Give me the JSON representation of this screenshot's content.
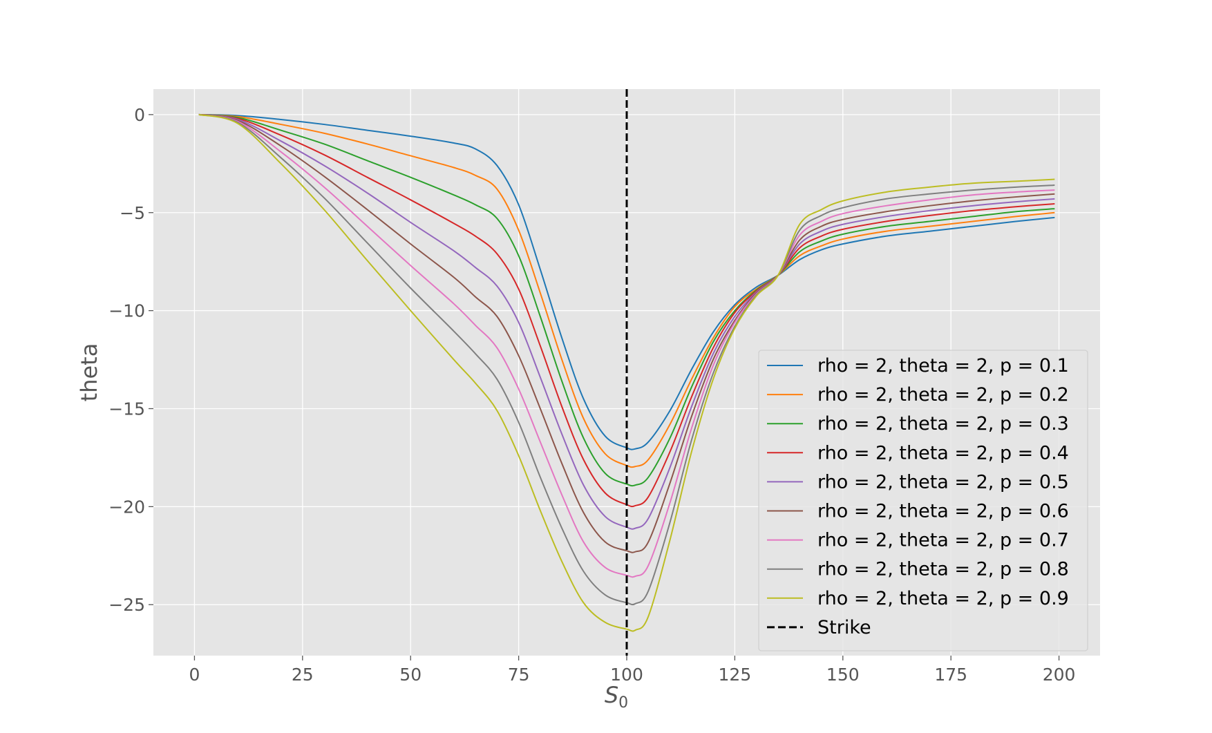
{
  "chart_data": {
    "type": "line",
    "title": "",
    "xlabel": "S",
    "xlabel_sub": "0",
    "ylabel": "theta",
    "xlim": [
      -9.5,
      209.5
    ],
    "ylim": [
      -27.6,
      1.3
    ],
    "xticks": [
      0,
      25,
      50,
      75,
      100,
      125,
      150,
      175,
      200
    ],
    "yticks": [
      0,
      -5,
      -10,
      -15,
      -20,
      -25
    ],
    "xtick_labels": [
      "0",
      "25",
      "50",
      "75",
      "100",
      "125",
      "150",
      "175",
      "200"
    ],
    "ytick_labels": [
      "0",
      "−5",
      "−10",
      "−15",
      "−20",
      "−25"
    ],
    "grid": true,
    "legend_position": "lower-right",
    "colors": {
      "background": "#e5e5e5",
      "grid": "#ffffff",
      "tick_text": "#555555"
    },
    "x": [
      1,
      10,
      20,
      30,
      40,
      50,
      60,
      65,
      70,
      75,
      80,
      85,
      90,
      95,
      100,
      102,
      105,
      110,
      115,
      120,
      125,
      130,
      135,
      140,
      145,
      150,
      160,
      170,
      180,
      190,
      199
    ],
    "series": [
      {
        "name": "rho = 2, theta = 2, p = 0.1",
        "color": "#1f77b4",
        "values": [
          0,
          -0.05,
          -0.25,
          -0.5,
          -0.8,
          -1.1,
          -1.45,
          -1.75,
          -2.6,
          -4.6,
          -7.9,
          -11.4,
          -14.5,
          -16.4,
          -17.0,
          -17.05,
          -16.7,
          -15.1,
          -13.0,
          -11.1,
          -9.7,
          -8.8,
          -8.2,
          -7.4,
          -6.9,
          -6.6,
          -6.2,
          -5.95,
          -5.7,
          -5.45,
          -5.25
        ]
      },
      {
        "name": "rho = 2, theta = 2, p = 0.2",
        "color": "#ff7f0e",
        "values": [
          0,
          -0.1,
          -0.5,
          -0.95,
          -1.5,
          -2.1,
          -2.7,
          -3.1,
          -3.8,
          -5.9,
          -9.1,
          -12.5,
          -15.5,
          -17.3,
          -17.9,
          -17.95,
          -17.6,
          -15.8,
          -13.5,
          -11.4,
          -9.8,
          -8.9,
          -8.2,
          -7.2,
          -6.7,
          -6.35,
          -5.95,
          -5.7,
          -5.45,
          -5.2,
          -5.0
        ]
      },
      {
        "name": "rho = 2, theta = 2, p = 0.3",
        "color": "#2ca02c",
        "values": [
          0,
          -0.15,
          -0.8,
          -1.5,
          -2.35,
          -3.2,
          -4.1,
          -4.6,
          -5.3,
          -7.2,
          -10.3,
          -13.6,
          -16.5,
          -18.3,
          -18.85,
          -18.9,
          -18.5,
          -16.5,
          -13.9,
          -11.6,
          -10.0,
          -8.95,
          -8.2,
          -7.0,
          -6.45,
          -6.1,
          -5.7,
          -5.45,
          -5.2,
          -4.95,
          -4.8
        ]
      },
      {
        "name": "rho = 2, theta = 2, p = 0.4",
        "color": "#d62728",
        "values": [
          0,
          -0.2,
          -1.05,
          -2.05,
          -3.2,
          -4.35,
          -5.55,
          -6.2,
          -7.1,
          -8.9,
          -11.8,
          -14.9,
          -17.6,
          -19.3,
          -19.9,
          -19.95,
          -19.5,
          -17.2,
          -14.4,
          -11.9,
          -10.1,
          -9.0,
          -8.2,
          -6.8,
          -6.2,
          -5.85,
          -5.45,
          -5.15,
          -4.9,
          -4.7,
          -4.55
        ]
      },
      {
        "name": "rho = 2, theta = 2, p = 0.5",
        "color": "#9467bd",
        "values": [
          0,
          -0.25,
          -1.35,
          -2.6,
          -4.0,
          -5.5,
          -6.95,
          -7.8,
          -8.75,
          -10.6,
          -13.4,
          -16.3,
          -18.9,
          -20.5,
          -21.05,
          -21.1,
          -20.6,
          -18.0,
          -14.9,
          -12.2,
          -10.3,
          -9.05,
          -8.2,
          -6.6,
          -5.95,
          -5.6,
          -5.2,
          -4.9,
          -4.65,
          -4.45,
          -4.3
        ]
      },
      {
        "name": "rho = 2, theta = 2, p = 0.6",
        "color": "#8c564b",
        "values": [
          0,
          -0.3,
          -1.6,
          -3.15,
          -4.85,
          -6.6,
          -8.3,
          -9.3,
          -10.3,
          -12.3,
          -15.0,
          -17.8,
          -20.3,
          -21.8,
          -22.25,
          -22.3,
          -21.8,
          -18.8,
          -15.4,
          -12.5,
          -10.5,
          -9.1,
          -8.2,
          -6.4,
          -5.7,
          -5.35,
          -4.95,
          -4.65,
          -4.4,
          -4.2,
          -4.05
        ]
      },
      {
        "name": "rho = 2, theta = 2, p = 0.7",
        "color": "#e377c2",
        "values": [
          0,
          -0.35,
          -1.9,
          -3.7,
          -5.7,
          -7.7,
          -9.65,
          -10.75,
          -11.9,
          -14.0,
          -16.7,
          -19.4,
          -21.8,
          -23.1,
          -23.5,
          -23.55,
          -23.0,
          -19.8,
          -16.0,
          -12.8,
          -10.6,
          -9.15,
          -8.2,
          -6.15,
          -5.45,
          -5.05,
          -4.65,
          -4.35,
          -4.1,
          -3.95,
          -3.85
        ]
      },
      {
        "name": "rho = 2, theta = 2, p = 0.8",
        "color": "#7f7f7f",
        "values": [
          0,
          -0.4,
          -2.2,
          -4.25,
          -6.55,
          -8.85,
          -11.05,
          -12.2,
          -13.5,
          -15.7,
          -18.5,
          -21.1,
          -23.3,
          -24.5,
          -24.9,
          -24.95,
          -24.3,
          -20.8,
          -16.6,
          -13.2,
          -10.8,
          -9.2,
          -8.2,
          -5.9,
          -5.15,
          -4.75,
          -4.3,
          -4.05,
          -3.85,
          -3.7,
          -3.6
        ]
      },
      {
        "name": "rho = 2, theta = 2, p = 0.9",
        "color": "#bcbd22",
        "values": [
          0,
          -0.45,
          -2.5,
          -4.85,
          -7.45,
          -10.0,
          -12.5,
          -13.7,
          -15.1,
          -17.4,
          -20.2,
          -22.8,
          -24.9,
          -25.9,
          -26.25,
          -26.3,
          -25.6,
          -21.7,
          -17.2,
          -13.5,
          -10.9,
          -9.25,
          -8.2,
          -5.6,
          -4.85,
          -4.4,
          -3.95,
          -3.7,
          -3.5,
          -3.4,
          -3.3
        ]
      }
    ],
    "strike": {
      "name": "Strike",
      "x": 100,
      "color": "#000000"
    }
  }
}
